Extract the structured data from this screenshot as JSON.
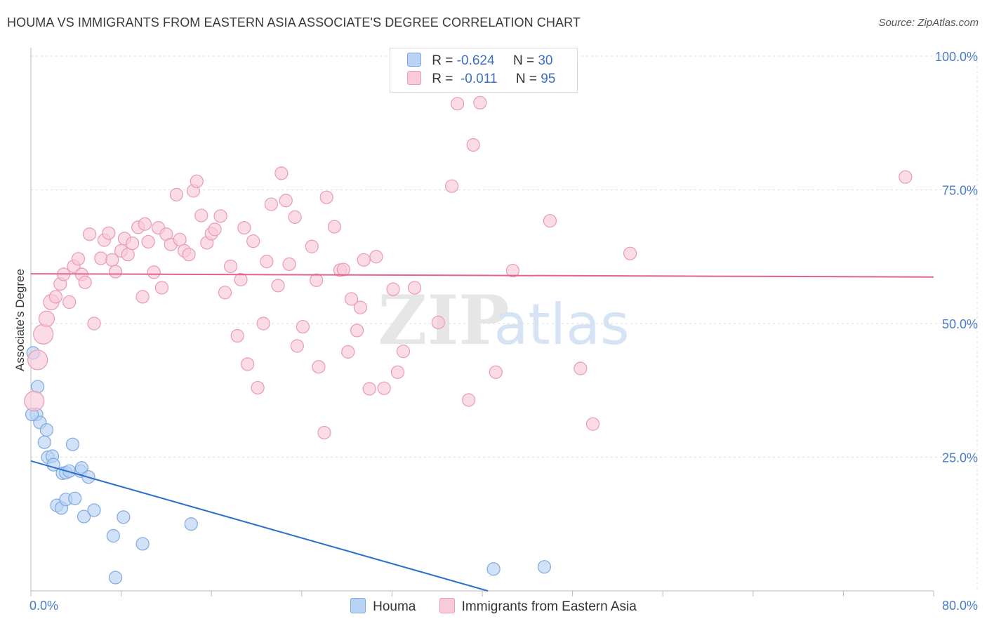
{
  "title": "HOUMA VS IMMIGRANTS FROM EASTERN ASIA ASSOCIATE'S DEGREE CORRELATION CHART",
  "source": "Source: ZipAtlas.com",
  "watermark": {
    "zip": "ZIP",
    "atlas": "atlas"
  },
  "legend_stats": [
    {
      "r_label": "R =",
      "r_value": "-0.624",
      "n_label": "N =",
      "n_value": "30"
    },
    {
      "r_label": "R =",
      "r_value": "-0.011",
      "n_label": "N =",
      "n_value": "95"
    }
  ],
  "chart_data": {
    "type": "scatter",
    "title": "HOUMA VS IMMIGRANTS FROM EASTERN ASIA ASSOCIATE'S DEGREE CORRELATION CHART",
    "xlabel": "",
    "ylabel": "Associate's Degree",
    "xlim": [
      0,
      80
    ],
    "ylim": [
      0,
      100
    ],
    "x_tick_labels": [
      "0.0%",
      "80.0%"
    ],
    "y_tick_labels": [
      "25.0%",
      "50.0%",
      "75.0%",
      "100.0%"
    ],
    "y_ticks": [
      25,
      50,
      75,
      100
    ],
    "grid": true,
    "legend_placement": "bottom-center",
    "series": [
      {
        "name": "Houma",
        "color": "#a8c6ef",
        "stroke": "#6e9fdc",
        "trend_color": "#2b6fd0",
        "trend": [
          [
            0,
            24.3
          ],
          [
            40.5,
            0
          ]
        ],
        "points": [
          [
            0.2,
            44.5
          ],
          [
            0.6,
            38.2
          ],
          [
            0.5,
            33.0
          ],
          [
            0.8,
            31.5
          ],
          [
            1.2,
            27.8
          ],
          [
            1.4,
            30.1
          ],
          [
            1.5,
            25.0
          ],
          [
            1.9,
            25.2
          ],
          [
            2.0,
            23.6
          ],
          [
            2.3,
            16.0
          ],
          [
            2.7,
            15.5
          ],
          [
            2.8,
            22.0
          ],
          [
            3.1,
            22.1
          ],
          [
            3.1,
            17.1
          ],
          [
            3.4,
            22.4
          ],
          [
            3.7,
            27.4
          ],
          [
            3.9,
            17.3
          ],
          [
            4.4,
            22.4
          ],
          [
            4.5,
            23.0
          ],
          [
            4.7,
            13.9
          ],
          [
            5.1,
            21.3
          ],
          [
            5.6,
            15.1
          ],
          [
            7.3,
            10.3
          ],
          [
            7.5,
            2.5
          ],
          [
            8.2,
            13.8
          ],
          [
            9.9,
            8.8
          ],
          [
            14.2,
            12.5
          ],
          [
            41.0,
            4.1
          ],
          [
            45.5,
            4.5
          ],
          [
            0.1,
            33.0
          ]
        ]
      },
      {
        "name": "Immigrants from Eastern Asia",
        "color": "#f6b9cb",
        "stroke": "#e88aa6",
        "trend_color": "#e0648c",
        "trend": [
          [
            0,
            59.3
          ],
          [
            80,
            58.7
          ]
        ],
        "points": [
          [
            0.3,
            35.5
          ],
          [
            0.6,
            43.2
          ],
          [
            1.1,
            48.0
          ],
          [
            1.4,
            50.9
          ],
          [
            1.8,
            54.0
          ],
          [
            2.2,
            55.0
          ],
          [
            2.6,
            57.4
          ],
          [
            2.9,
            59.2
          ],
          [
            3.4,
            54.0
          ],
          [
            3.8,
            60.7
          ],
          [
            4.2,
            62.1
          ],
          [
            4.5,
            59.2
          ],
          [
            4.8,
            57.7
          ],
          [
            5.2,
            66.7
          ],
          [
            5.6,
            50.0
          ],
          [
            6.2,
            62.2
          ],
          [
            6.5,
            65.6
          ],
          [
            6.9,
            66.9
          ],
          [
            7.2,
            61.9
          ],
          [
            7.5,
            59.7
          ],
          [
            8.0,
            63.6
          ],
          [
            8.3,
            65.9
          ],
          [
            8.6,
            62.9
          ],
          [
            9.0,
            65.0
          ],
          [
            9.5,
            68.0
          ],
          [
            9.9,
            55.0
          ],
          [
            10.1,
            68.6
          ],
          [
            10.4,
            65.3
          ],
          [
            10.9,
            59.6
          ],
          [
            11.3,
            67.9
          ],
          [
            11.6,
            56.7
          ],
          [
            12.0,
            66.7
          ],
          [
            12.4,
            64.8
          ],
          [
            12.9,
            74.1
          ],
          [
            13.2,
            65.7
          ],
          [
            13.6,
            63.6
          ],
          [
            14.0,
            62.9
          ],
          [
            14.4,
            74.8
          ],
          [
            14.7,
            76.6
          ],
          [
            15.1,
            70.2
          ],
          [
            15.6,
            65.1
          ],
          [
            16.0,
            66.8
          ],
          [
            16.3,
            67.6
          ],
          [
            16.8,
            70.1
          ],
          [
            17.2,
            55.8
          ],
          [
            17.7,
            60.7
          ],
          [
            18.3,
            47.7
          ],
          [
            18.6,
            58.2
          ],
          [
            18.9,
            67.9
          ],
          [
            19.2,
            42.4
          ],
          [
            19.7,
            65.4
          ],
          [
            20.1,
            38.0
          ],
          [
            20.6,
            50.0
          ],
          [
            20.9,
            61.6
          ],
          [
            21.3,
            72.3
          ],
          [
            21.9,
            57.1
          ],
          [
            22.2,
            78.1
          ],
          [
            22.6,
            73.0
          ],
          [
            22.9,
            61.1
          ],
          [
            23.4,
            69.9
          ],
          [
            23.6,
            45.8
          ],
          [
            24.1,
            49.4
          ],
          [
            24.9,
            64.4
          ],
          [
            25.3,
            58.1
          ],
          [
            25.5,
            41.9
          ],
          [
            26.0,
            29.6
          ],
          [
            26.2,
            73.6
          ],
          [
            26.9,
            68.1
          ],
          [
            27.4,
            60.0
          ],
          [
            27.7,
            60.1
          ],
          [
            28.1,
            44.7
          ],
          [
            28.4,
            54.6
          ],
          [
            28.9,
            48.7
          ],
          [
            29.2,
            53.0
          ],
          [
            29.5,
            61.9
          ],
          [
            30.0,
            37.8
          ],
          [
            30.6,
            62.5
          ],
          [
            31.3,
            37.9
          ],
          [
            32.1,
            56.4
          ],
          [
            32.5,
            40.9
          ],
          [
            33.0,
            44.8
          ],
          [
            34.0,
            56.7
          ],
          [
            36.1,
            50.2
          ],
          [
            37.8,
            91.1
          ],
          [
            37.3,
            75.7
          ],
          [
            38.8,
            35.7
          ],
          [
            39.2,
            83.4
          ],
          [
            39.8,
            91.3
          ],
          [
            41.2,
            40.9
          ],
          [
            42.7,
            59.9
          ],
          [
            46.0,
            69.2
          ],
          [
            48.7,
            41.6
          ],
          [
            49.8,
            31.2
          ],
          [
            53.1,
            63.1
          ],
          [
            77.5,
            77.4
          ]
        ]
      }
    ]
  },
  "colors": {
    "houma_fill": "#b9d3f5",
    "houma_stroke": "#7fa8e0",
    "eastern_asia_fill": "#f9cad8",
    "eastern_asia_stroke": "#ea9ab3",
    "grid": "#dddddd",
    "tick_label": "#4a7cc7"
  }
}
